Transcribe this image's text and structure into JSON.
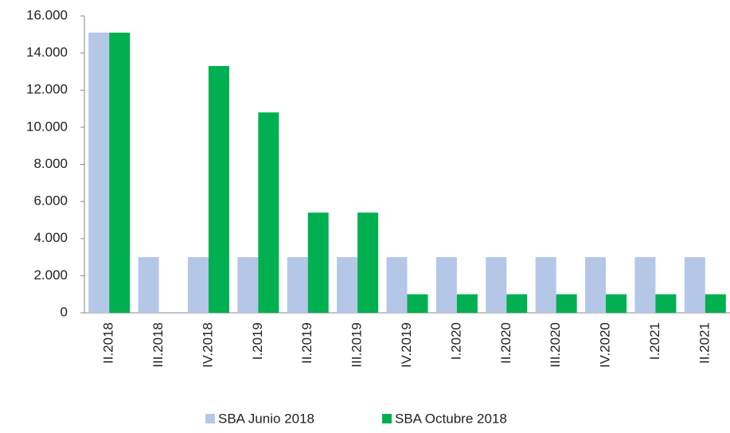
{
  "chart_data": {
    "type": "bar",
    "categories": [
      "II.2018",
      "III.2018",
      "IV.2018",
      "I.2019",
      "II.2019",
      "III.2019",
      "IV.2019",
      "I.2020",
      "II.2020",
      "III.2020",
      "IV.2020",
      "I.2021",
      "II.2021"
    ],
    "series": [
      {
        "name": "SBA Junio 2018",
        "color": "#b4c7e7",
        "values": [
          15100,
          3000,
          3000,
          3000,
          3000,
          3000,
          3000,
          3000,
          3000,
          3000,
          3000,
          3000,
          3000
        ]
      },
      {
        "name": "SBA Octubre 2018",
        "color": "#00b050",
        "values": [
          15100,
          0,
          13300,
          10800,
          5400,
          5400,
          1000,
          1000,
          1000,
          1000,
          1000,
          1000,
          1000
        ]
      }
    ],
    "ylim": [
      0,
      16000
    ],
    "yticks": [
      0,
      {
        "value": 2000,
        "label": "2.000"
      },
      {
        "value": 4000,
        "label": "4.000"
      },
      {
        "value": 6000,
        "label": "6.000"
      },
      {
        "value": 8000,
        "label": "8.000"
      },
      {
        "value": 10000,
        "label": "10.000"
      },
      {
        "value": 12000,
        "label": "12.000"
      },
      {
        "value": 14000,
        "label": "14.000"
      },
      {
        "value": 16000,
        "label": "16.000"
      }
    ],
    "legend": "bottom"
  }
}
